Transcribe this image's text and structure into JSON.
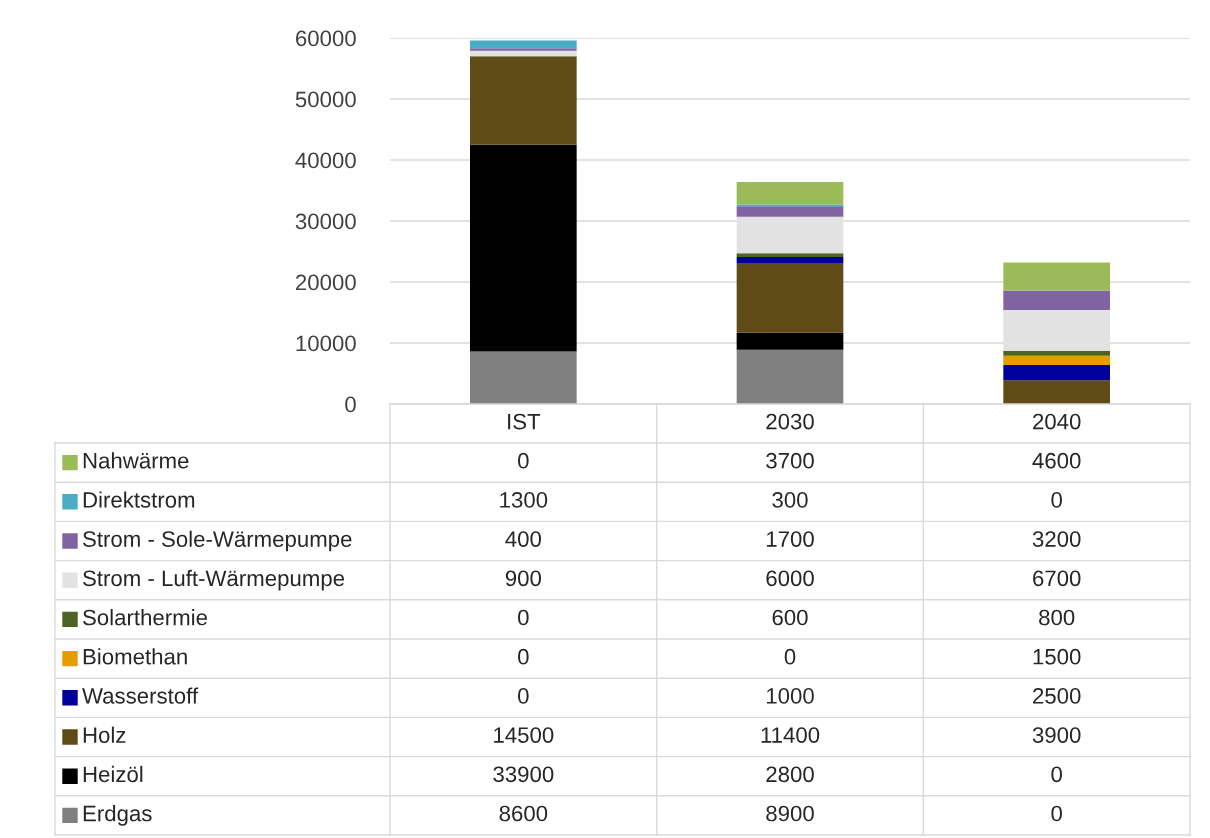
{
  "chart_data": {
    "type": "bar",
    "stacked": true,
    "categories": [
      "IST",
      "2030",
      "2040"
    ],
    "series": [
      {
        "name": "Erdgas",
        "color": "#808080",
        "values": [
          8600,
          8900,
          0
        ]
      },
      {
        "name": "Heizöl",
        "color": "#000000",
        "values": [
          33900,
          2800,
          0
        ]
      },
      {
        "name": "Holz",
        "color": "#5e4b15",
        "values": [
          14500,
          11400,
          3900
        ]
      },
      {
        "name": "Wasserstoff",
        "color": "#00009a",
        "values": [
          0,
          1000,
          2500
        ]
      },
      {
        "name": "Biomethan",
        "color": "#e59c00",
        "values": [
          0,
          0,
          1500
        ]
      },
      {
        "name": "Solarthermie",
        "color": "#4f6228",
        "values": [
          0,
          600,
          800
        ]
      },
      {
        "name": "Strom - Luft-Wärmepumpe",
        "color": "#e2e2e2",
        "values": [
          900,
          6000,
          6700
        ]
      },
      {
        "name": "Strom - Sole-Wärmepumpe",
        "color": "#8064a2",
        "values": [
          400,
          1700,
          3200
        ]
      },
      {
        "name": "Direktstrom",
        "color": "#4bacc6",
        "values": [
          1300,
          300,
          0
        ]
      },
      {
        "name": "Nahwärme",
        "color": "#9bbb59",
        "values": [
          0,
          3700,
          4600
        ]
      }
    ],
    "ylim": [
      0,
      60000
    ],
    "yticks": [
      0,
      10000,
      20000,
      30000,
      40000,
      50000,
      60000
    ],
    "grid": "y",
    "legend": "bottom",
    "data_labels": true
  }
}
